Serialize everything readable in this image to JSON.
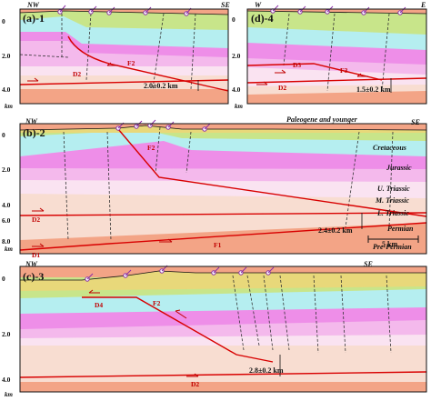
{
  "colors": {
    "paleogene": "#e8d87a",
    "cretaceous": "#c8e58a",
    "jurassic": "#b5eef0",
    "upper_triassic": "#ee8ee8",
    "middle_triassic": "#f4b9ec",
    "lower_triassic": "#fae3f1",
    "permian": "#f8ddd1",
    "pre_permian": "#f3a486",
    "fault": "#d80000",
    "axial": "#333333",
    "dip": "#8a2ea6"
  },
  "panels": {
    "a": {
      "label": "(a)-1",
      "left": "NW",
      "right": "SE",
      "ticks": [
        "0",
        "2.0",
        "4.0"
      ],
      "unit": "km",
      "faults": [
        "D2",
        "F2"
      ],
      "measure": "2.0±0.2 km"
    },
    "d": {
      "label": "(d)-4",
      "left": "W",
      "right": "E",
      "ticks": [
        "0",
        "2.0",
        "4.0"
      ],
      "unit": "km",
      "faults": [
        "D3",
        "F3",
        "D2"
      ],
      "measure": "1.5±0.2 km"
    },
    "b": {
      "label": "(b)-2",
      "left": "NW",
      "right": "SE",
      "ticks": [
        "0",
        "2.0",
        "4.0",
        "6.0",
        "8.0"
      ],
      "unit": "km",
      "faults": [
        "F2",
        "D2",
        "D1",
        "F1"
      ],
      "measure": "2.4±0.2 km",
      "units": [
        "Paleogene and younger",
        "Cretaceous",
        "Jurassic",
        "U. Triassic",
        "M. Triassic",
        "L. Triassic",
        "Permian",
        "Pre-Permian"
      ],
      "scale": "5 km"
    },
    "c": {
      "label": "(c)-3",
      "left": "NW",
      "right": "SE",
      "ticks": [
        "0",
        "2.0",
        "4.0"
      ],
      "unit": "km",
      "faults": [
        "D4",
        "F2",
        "D2"
      ],
      "measure": "2.8±0.2 km"
    }
  }
}
